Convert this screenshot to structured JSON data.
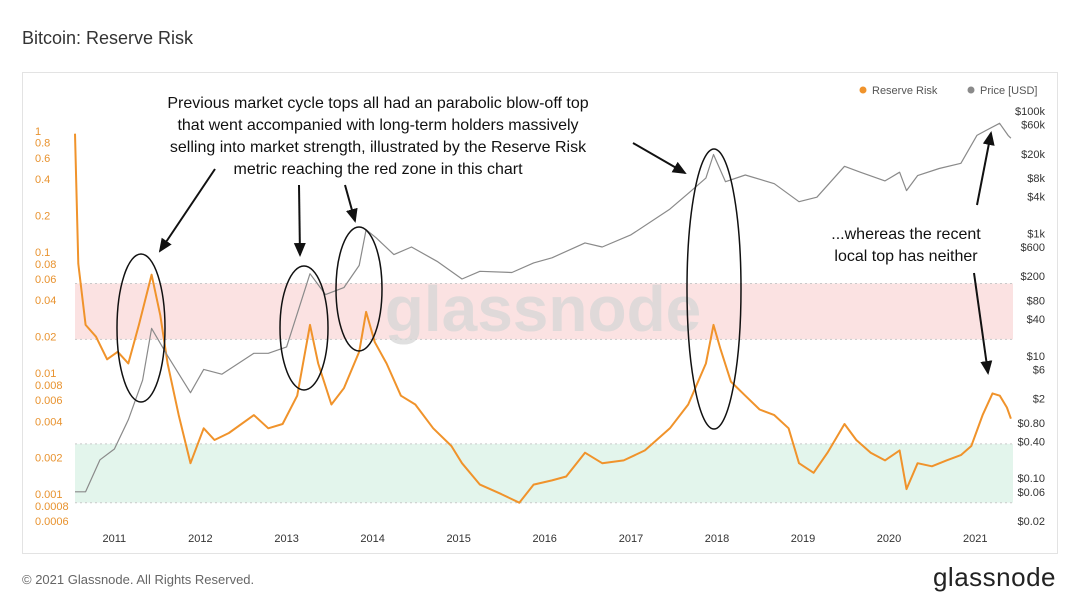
{
  "title": "Bitcoin: Reserve Risk",
  "footer": {
    "copyright": "© 2021 Glassnode. All Rights Reserved.",
    "logo_text": "glassnode"
  },
  "watermark": "glassnode",
  "annotations": {
    "main": [
      "Previous market cycle tops all had an parabolic blow-off top",
      "that went accompanied with long-term holders massively",
      "selling into market strength, illustrated by the Reserve Risk",
      "metric reaching the red zone in this chart"
    ],
    "recent": [
      "...whereas the recent",
      "local top has neither"
    ]
  },
  "colors": {
    "reserve_risk": "#f0932b",
    "price": "#8a8a8a",
    "red_zone": "#fbe2e2",
    "green_zone": "#e3f5ec"
  },
  "chart_data": {
    "type": "line",
    "legend": {
      "placement": "top-right",
      "entries": [
        "Reserve Risk",
        "Price [USD]"
      ]
    },
    "x_ticks": [
      "2011",
      "2012",
      "2013",
      "2014",
      "2015",
      "2016",
      "2017",
      "2018",
      "2019",
      "2020",
      "2021"
    ],
    "left_axis": {
      "scale": "log",
      "range": [
        0.0006,
        1
      ],
      "ticks": [
        "1",
        "0.8",
        "0.6",
        "0.4",
        "0.2",
        "0.1",
        "0.08",
        "0.06",
        "0.04",
        "0.02",
        "0.01",
        "0.008",
        "0.006",
        "0.004",
        "0.002",
        "0.001",
        "0.0008",
        "0.0006"
      ],
      "tick_values": [
        1,
        0.8,
        0.6,
        0.4,
        0.2,
        0.1,
        0.08,
        0.06,
        0.04,
        0.02,
        0.01,
        0.008,
        0.006,
        0.004,
        0.002,
        0.001,
        0.0008,
        0.0006
      ]
    },
    "right_axis": {
      "scale": "log",
      "range": [
        0.02,
        100000
      ],
      "ticks": [
        "$100k",
        "$60k",
        "$20k",
        "$8k",
        "$4k",
        "$1k",
        "$600",
        "$200",
        "$80",
        "$40",
        "$10",
        "$6",
        "$2",
        "$0.80",
        "$0.40",
        "$0.10",
        "$0.06",
        "$0.02"
      ],
      "tick_values": [
        100000,
        60000,
        20000,
        8000,
        4000,
        1000,
        600,
        200,
        80,
        40,
        10,
        6,
        2,
        0.8,
        0.4,
        0.1,
        0.06,
        0.02
      ]
    },
    "zones": [
      {
        "name": "red",
        "from": 0.019,
        "to": 0.055
      },
      {
        "name": "green",
        "from": 0.00085,
        "to": 0.0026
      }
    ],
    "series": [
      {
        "name": "Reserve Risk",
        "axis": "left",
        "points": [
          [
            "2010-07-18",
            0.95
          ],
          [
            "2010-08-01",
            0.08
          ],
          [
            "2010-09-01",
            0.025
          ],
          [
            "2010-10-15",
            0.02
          ],
          [
            "2010-12-01",
            0.013
          ],
          [
            "2011-01-15",
            0.015
          ],
          [
            "2011-03-01",
            0.012
          ],
          [
            "2011-04-15",
            0.025
          ],
          [
            "2011-06-08",
            0.065
          ],
          [
            "2011-07-15",
            0.03
          ],
          [
            "2011-08-15",
            0.012
          ],
          [
            "2011-10-01",
            0.0045
          ],
          [
            "2011-11-20",
            0.0018
          ],
          [
            "2012-01-15",
            0.0035
          ],
          [
            "2012-03-01",
            0.0028
          ],
          [
            "2012-05-01",
            0.0032
          ],
          [
            "2012-08-15",
            0.0045
          ],
          [
            "2012-10-15",
            0.0035
          ],
          [
            "2012-12-15",
            0.0038
          ],
          [
            "2013-02-15",
            0.0065
          ],
          [
            "2013-04-10",
            0.025
          ],
          [
            "2013-05-15",
            0.012
          ],
          [
            "2013-07-10",
            0.0055
          ],
          [
            "2013-09-01",
            0.0075
          ],
          [
            "2013-11-05",
            0.015
          ],
          [
            "2013-12-04",
            0.032
          ],
          [
            "2014-01-10",
            0.018
          ],
          [
            "2014-03-01",
            0.012
          ],
          [
            "2014-05-01",
            0.0065
          ],
          [
            "2014-07-01",
            0.0055
          ],
          [
            "2014-09-15",
            0.0035
          ],
          [
            "2014-12-01",
            0.0025
          ],
          [
            "2015-01-15",
            0.0018
          ],
          [
            "2015-04-01",
            0.0012
          ],
          [
            "2015-07-01",
            0.001
          ],
          [
            "2015-09-15",
            0.00085
          ],
          [
            "2015-11-15",
            0.0012
          ],
          [
            "2016-02-01",
            0.0013
          ],
          [
            "2016-04-01",
            0.0014
          ],
          [
            "2016-06-20",
            0.0022
          ],
          [
            "2016-09-01",
            0.0018
          ],
          [
            "2016-12-01",
            0.0019
          ],
          [
            "2017-03-01",
            0.0023
          ],
          [
            "2017-06-15",
            0.0035
          ],
          [
            "2017-09-01",
            0.0055
          ],
          [
            "2017-11-15",
            0.012
          ],
          [
            "2017-12-17",
            0.025
          ],
          [
            "2018-01-15",
            0.016
          ],
          [
            "2018-03-01",
            0.0085
          ],
          [
            "2018-05-01",
            0.0065
          ],
          [
            "2018-07-01",
            0.005
          ],
          [
            "2018-09-01",
            0.0045
          ],
          [
            "2018-11-01",
            0.0035
          ],
          [
            "2018-12-15",
            0.0018
          ],
          [
            "2019-02-15",
            0.0015
          ],
          [
            "2019-04-15",
            0.0022
          ],
          [
            "2019-06-26",
            0.0038
          ],
          [
            "2019-08-15",
            0.0028
          ],
          [
            "2019-10-15",
            0.0022
          ],
          [
            "2019-12-15",
            0.0019
          ],
          [
            "2020-02-15",
            0.0023
          ],
          [
            "2020-03-15",
            0.0011
          ],
          [
            "2020-05-01",
            0.0018
          ],
          [
            "2020-07-01",
            0.0017
          ],
          [
            "2020-09-01",
            0.0019
          ],
          [
            "2020-11-01",
            0.0021
          ],
          [
            "2020-12-15",
            0.0025
          ],
          [
            "2021-02-01",
            0.0045
          ],
          [
            "2021-03-15",
            0.0068
          ],
          [
            "2021-04-15",
            0.0065
          ],
          [
            "2021-05-15",
            0.0052
          ],
          [
            "2021-06-01",
            0.0042
          ]
        ]
      },
      {
        "name": "Price [USD]",
        "axis": "right",
        "points": [
          [
            "2010-07-18",
            0.06
          ],
          [
            "2010-09-01",
            0.06
          ],
          [
            "2010-11-01",
            0.2
          ],
          [
            "2011-01-01",
            0.3
          ],
          [
            "2011-03-01",
            0.9
          ],
          [
            "2011-05-01",
            4
          ],
          [
            "2011-06-08",
            28
          ],
          [
            "2011-08-15",
            10
          ],
          [
            "2011-11-20",
            2.5
          ],
          [
            "2012-01-15",
            6
          ],
          [
            "2012-04-01",
            5
          ],
          [
            "2012-08-15",
            11
          ],
          [
            "2012-10-15",
            11
          ],
          [
            "2013-01-01",
            14
          ],
          [
            "2013-04-10",
            220
          ],
          [
            "2013-06-15",
            100
          ],
          [
            "2013-09-01",
            130
          ],
          [
            "2013-11-05",
            300
          ],
          [
            "2013-12-04",
            1150
          ],
          [
            "2014-01-15",
            850
          ],
          [
            "2014-04-01",
            450
          ],
          [
            "2014-06-15",
            600
          ],
          [
            "2014-10-01",
            350
          ],
          [
            "2015-01-15",
            180
          ],
          [
            "2015-04-01",
            240
          ],
          [
            "2015-08-15",
            230
          ],
          [
            "2015-11-15",
            330
          ],
          [
            "2016-02-01",
            400
          ],
          [
            "2016-06-20",
            700
          ],
          [
            "2016-09-01",
            600
          ],
          [
            "2017-01-01",
            950
          ],
          [
            "2017-06-15",
            2500
          ],
          [
            "2017-09-01",
            4500
          ],
          [
            "2017-11-15",
            8000
          ],
          [
            "2017-12-17",
            19500
          ],
          [
            "2018-02-06",
            7000
          ],
          [
            "2018-05-01",
            9000
          ],
          [
            "2018-09-01",
            6500
          ],
          [
            "2018-12-15",
            3300
          ],
          [
            "2019-03-01",
            3900
          ],
          [
            "2019-06-26",
            12500
          ],
          [
            "2019-09-01",
            10000
          ],
          [
            "2019-12-15",
            7200
          ],
          [
            "2020-02-15",
            10000
          ],
          [
            "2020-03-15",
            5000
          ],
          [
            "2020-05-01",
            8800
          ],
          [
            "2020-08-01",
            11500
          ],
          [
            "2020-11-01",
            14000
          ],
          [
            "2021-01-08",
            40000
          ],
          [
            "2021-02-15",
            48000
          ],
          [
            "2021-04-14",
            63000
          ],
          [
            "2021-05-20",
            40000
          ],
          [
            "2021-06-01",
            36000
          ]
        ]
      }
    ]
  }
}
